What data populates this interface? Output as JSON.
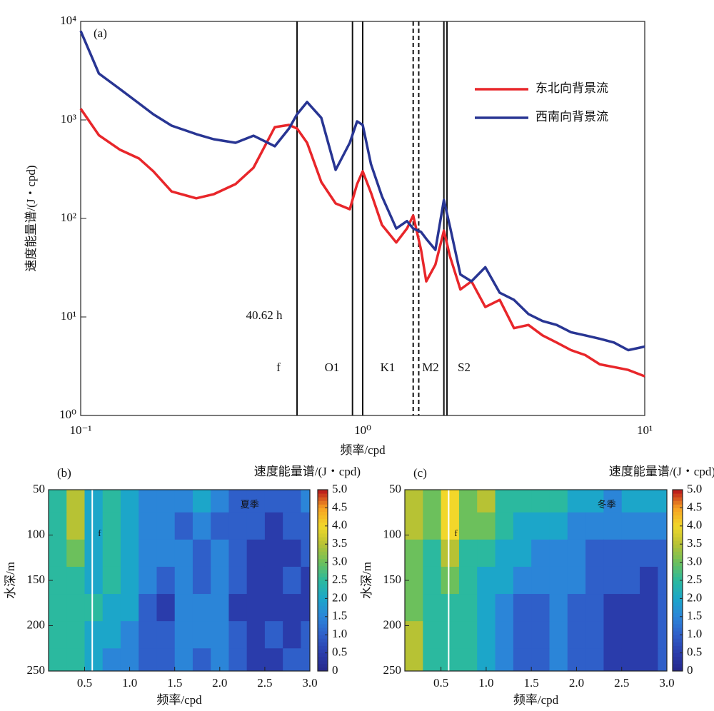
{
  "chart_data": [
    {
      "type": "line",
      "panel": "(a)",
      "xlabel": "频率/cpd",
      "ylabel": "速度能量谱/(J・cpd)",
      "xscale": "log",
      "yscale": "log",
      "xlim": [
        0.1,
        10
      ],
      "ylim": [
        1,
        10000
      ],
      "xticks": [
        {
          "value": 0.1,
          "label": "10⁻¹"
        },
        {
          "value": 1,
          "label": "10⁰"
        },
        {
          "value": 10,
          "label": "10¹"
        }
      ],
      "yticks": [
        {
          "value": 1,
          "label": "10⁰"
        },
        {
          "value": 10,
          "label": "10¹"
        },
        {
          "value": 100,
          "label": "10²"
        },
        {
          "value": 1000,
          "label": "10³"
        },
        {
          "value": 10000,
          "label": "10⁴"
        }
      ],
      "legend": "upper right",
      "x": [
        0.1,
        0.116,
        0.138,
        0.161,
        0.181,
        0.21,
        0.257,
        0.296,
        0.354,
        0.41,
        0.488,
        0.548,
        0.585,
        0.635,
        0.713,
        0.802,
        0.9,
        0.955,
        1.0,
        1.07,
        1.17,
        1.315,
        1.435,
        1.51,
        1.61,
        1.68,
        1.81,
        1.94,
        2.04,
        2.22,
        2.43,
        2.72,
        3.06,
        3.44,
        3.87,
        4.34,
        4.87,
        5.48,
        6.15,
        6.93,
        7.78,
        8.74,
        10
      ],
      "series": [
        {
          "name": "东北向背景流",
          "color": "#e8262a",
          "values": [
            1300,
            700,
            497,
            406,
            301,
            188,
            160,
            176,
            223,
            327,
            845,
            890,
            818,
            586,
            234,
            142,
            124,
            223,
            301,
            182,
            86,
            57,
            79,
            107,
            48,
            23,
            34,
            75,
            41,
            19,
            23,
            12.6,
            14.9,
            7.7,
            8.3,
            6.5,
            5.5,
            4.6,
            4.1,
            3.3,
            3.1,
            2.9,
            2.5
          ]
        },
        {
          "name": "西南向背景流",
          "color": "#283593",
          "values": [
            8000,
            2960,
            2050,
            1470,
            1140,
            875,
            717,
            637,
            586,
            692,
            540,
            818,
            1140,
            1520,
            1050,
            311,
            586,
            967,
            890,
            355,
            168,
            79,
            94,
            79,
            73,
            62,
            48,
            154,
            82,
            27,
            23,
            32,
            17.6,
            14.9,
            10.7,
            9.1,
            8.3,
            7.0,
            6.5,
            6.0,
            5.5,
            4.6,
            5.0
          ]
        }
      ],
      "vlines": [
        {
          "x": 0.585,
          "dashed": false
        },
        {
          "x": 0.92,
          "dashed": false
        },
        {
          "x": 1.0,
          "dashed": false
        },
        {
          "x": 1.51,
          "dashed": true
        },
        {
          "x": 1.58,
          "dashed": true
        },
        {
          "x": 1.94,
          "dashed": false
        },
        {
          "x": 1.99,
          "dashed": false
        }
      ],
      "line_labels": [
        "f",
        "O1",
        "K1",
        "M2",
        "S2"
      ],
      "period_label": "40.62 h"
    },
    {
      "type": "heatmap",
      "panel": "(b)",
      "xlabel": "频率/cpd",
      "ylabel": "水深/m",
      "colorbar_label": "速度能量谱/(J・cpd)",
      "xlim": [
        0.1,
        3.0
      ],
      "ylim": [
        50,
        250
      ],
      "invert_y": true,
      "xticks": [
        0.5,
        {
          "value": 1,
          "label": "1.0"
        },
        1.5,
        {
          "value": 2,
          "label": "2.0"
        },
        2.5,
        {
          "value": 3,
          "label": "3.0"
        }
      ],
      "yticks": [
        50,
        100,
        150,
        200,
        250
      ],
      "vlim": [
        0,
        5
      ],
      "cticks": [
        0,
        0.5,
        {
          "value": 1,
          "label": "1.0"
        },
        1.5,
        {
          "value": 2,
          "label": "2.0"
        },
        2.5,
        {
          "value": 3,
          "label": "3.0"
        },
        3.5,
        {
          "value": 4,
          "label": "4.0"
        },
        4.5,
        {
          "value": 5,
          "label": "5.0"
        }
      ],
      "colormap": [
        "#26288a",
        "#2a3cab",
        "#2f5fc9",
        "#2b85d8",
        "#1ca6c9",
        "#2bb99f",
        "#6cc05c",
        "#b7c234",
        "#f2d72a",
        "#f6a123",
        "#b8141c"
      ],
      "fline": 0.585,
      "labels": [
        "f",
        "夏季"
      ],
      "x": [
        0.2,
        0.4,
        0.6,
        0.8,
        1.0,
        1.2,
        1.4,
        1.6,
        1.8,
        2.0,
        2.2,
        2.4,
        2.6,
        2.8,
        3.0
      ],
      "y": [
        60,
        90,
        120,
        150,
        180,
        210,
        240
      ],
      "z": [
        [
          2.5,
          3.5,
          2.0,
          2.5,
          2.0,
          1.5,
          1.5,
          1.5,
          2.0,
          1.5,
          1.0,
          1.0,
          1.0,
          1.0,
          1.5
        ],
        [
          2.5,
          3.5,
          2.0,
          2.5,
          2.0,
          1.5,
          1.5,
          1.0,
          1.5,
          1.0,
          1.0,
          1.0,
          0.5,
          1.0,
          1.0
        ],
        [
          2.5,
          3.0,
          2.0,
          2.5,
          2.0,
          1.5,
          1.5,
          1.5,
          1.0,
          1.5,
          1.0,
          0.5,
          0.5,
          0.5,
          1.0
        ],
        [
          2.5,
          2.5,
          2.0,
          2.5,
          2.0,
          1.5,
          1.0,
          1.5,
          1.0,
          1.5,
          1.0,
          0.5,
          0.5,
          1.0,
          0.5
        ],
        [
          2.5,
          2.5,
          2.5,
          2.0,
          2.0,
          1.0,
          0.5,
          1.5,
          1.5,
          1.5,
          0.5,
          0.5,
          0.5,
          0.5,
          0.5
        ],
        [
          2.5,
          2.5,
          2.0,
          2.0,
          1.5,
          1.0,
          1.0,
          1.5,
          1.5,
          1.5,
          1.0,
          0.5,
          1.0,
          0.5,
          1.0
        ],
        [
          2.5,
          2.5,
          2.0,
          1.5,
          1.5,
          1.0,
          1.0,
          1.5,
          1.0,
          1.5,
          1.0,
          0.5,
          0.5,
          1.0,
          1.0
        ]
      ]
    },
    {
      "type": "heatmap",
      "panel": "(c)",
      "xlabel": "频率/cpd",
      "ylabel": "水深/m",
      "colorbar_label": "速度能量谱/(J・cpd)",
      "xlim": [
        0.1,
        3.0
      ],
      "ylim": [
        50,
        250
      ],
      "invert_y": true,
      "xticks": [
        0.5,
        {
          "value": 1,
          "label": "1.0"
        },
        1.5,
        {
          "value": 2,
          "label": "2.0"
        },
        2.5,
        {
          "value": 3,
          "label": "3.0"
        }
      ],
      "yticks": [
        50,
        100,
        150,
        200,
        250
      ],
      "vlim": [
        0,
        5
      ],
      "cticks": [
        0,
        0.5,
        {
          "value": 1,
          "label": "1.0"
        },
        1.5,
        {
          "value": 2,
          "label": "2.0"
        },
        2.5,
        {
          "value": 3,
          "label": "3.0"
        },
        3.5,
        {
          "value": 4,
          "label": "4.0"
        },
        4.5,
        {
          "value": 5,
          "label": "5.0"
        }
      ],
      "colormap": [
        "#26288a",
        "#2a3cab",
        "#2f5fc9",
        "#2b85d8",
        "#1ca6c9",
        "#2bb99f",
        "#6cc05c",
        "#b7c234",
        "#f2d72a",
        "#f6a123",
        "#b8141c"
      ],
      "fline": 0.585,
      "labels": [
        "f",
        "冬季"
      ],
      "x": [
        0.2,
        0.4,
        0.6,
        0.8,
        1.0,
        1.2,
        1.4,
        1.6,
        1.8,
        2.0,
        2.2,
        2.4,
        2.6,
        2.8,
        3.0
      ],
      "y": [
        60,
        90,
        120,
        150,
        180,
        210,
        240
      ],
      "z": [
        [
          3.5,
          3.0,
          4.0,
          3.0,
          3.5,
          2.5,
          2.5,
          2.5,
          2.5,
          2.0,
          2.0,
          1.5,
          2.0,
          2.0,
          2.0
        ],
        [
          3.5,
          3.0,
          4.0,
          3.0,
          3.0,
          2.5,
          2.0,
          2.0,
          2.0,
          1.5,
          1.5,
          1.5,
          1.5,
          1.5,
          1.5
        ],
        [
          3.0,
          2.5,
          3.5,
          2.5,
          2.5,
          2.0,
          2.0,
          1.5,
          1.5,
          1.5,
          1.0,
          1.0,
          1.0,
          1.0,
          1.0
        ],
        [
          3.0,
          2.5,
          3.0,
          2.5,
          2.0,
          2.0,
          1.5,
          1.5,
          1.5,
          1.5,
          1.0,
          1.0,
          1.0,
          0.5,
          1.0
        ],
        [
          3.0,
          2.5,
          2.5,
          2.5,
          2.0,
          1.5,
          1.0,
          1.0,
          1.5,
          1.0,
          1.0,
          0.5,
          0.5,
          0.5,
          1.0
        ],
        [
          3.5,
          2.5,
          2.5,
          2.5,
          2.0,
          1.5,
          1.0,
          1.0,
          1.5,
          1.0,
          1.0,
          0.5,
          0.5,
          0.5,
          1.0
        ],
        [
          3.5,
          2.5,
          2.5,
          2.5,
          2.0,
          1.5,
          1.0,
          1.0,
          1.5,
          1.0,
          1.0,
          0.5,
          0.5,
          0.5,
          1.0
        ]
      ]
    }
  ]
}
